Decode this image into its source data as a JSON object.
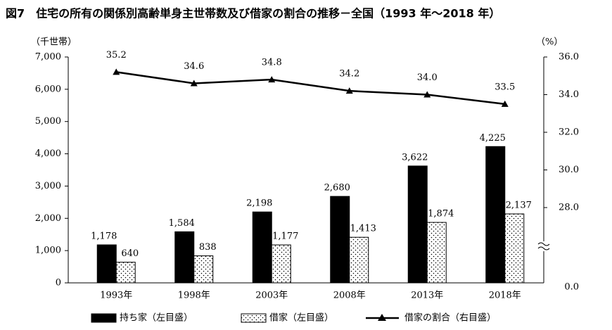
{
  "chart_data": {
    "type": "bar_line",
    "title": "図7　住宅の所有の関係別高齢単身主世帯数及び借家の割合の推移－全国（1993 年～2018 年）",
    "ylabel": "（千世帯）",
    "y2label": "（%）",
    "categories": [
      "1993年",
      "1998年",
      "2003年",
      "2008年",
      "2013年",
      "2018年"
    ],
    "series": [
      {
        "name": "持ち家（左目盛）",
        "color": "#000000",
        "type": "bar",
        "values": [
          1178,
          1584,
          2198,
          2680,
          3622,
          4225
        ],
        "value_labels": [
          "1,178",
          "1,584",
          "2,198",
          "2,680",
          "3,622",
          "4,225"
        ]
      },
      {
        "name": "借家（左目盛）",
        "color": "#ffffff",
        "pattern": "dots",
        "type": "bar",
        "values": [
          640,
          838,
          1177,
          1413,
          1874,
          2137
        ],
        "value_labels": [
          "640",
          "838",
          "1,177",
          "1,413",
          "1,874",
          "2,137"
        ]
      },
      {
        "name": "借家の割合（右目盛）",
        "color": "#000000",
        "type": "line",
        "marker": "triangle",
        "axis": "y2",
        "values": [
          35.2,
          34.6,
          34.8,
          34.2,
          34.0,
          33.5
        ],
        "value_labels": [
          "35.2",
          "34.6",
          "34.8",
          "34.2",
          "34.0",
          "33.5"
        ]
      }
    ],
    "ylim": [
      0,
      7000
    ],
    "yticks": [
      0,
      {
        "value": 1000,
        "label": "1,000"
      },
      {
        "value": 2000,
        "label": "2,000"
      },
      {
        "value": 3000,
        "label": "3,000"
      },
      {
        "value": 4000,
        "label": "4,000"
      },
      {
        "value": 5000,
        "label": "5,000"
      },
      {
        "value": 6000,
        "label": "6,000"
      },
      {
        "value": 7000,
        "label": "7,000"
      }
    ],
    "y2lim": [
      24,
      36
    ],
    "y2ticks": [
      {
        "value": 0,
        "label": "0.0"
      },
      {
        "value": 28,
        "label": "28.0"
      },
      {
        "value": 30,
        "label": "30.0"
      },
      {
        "value": 32,
        "label": "32.0"
      },
      {
        "value": 34,
        "label": "34.0"
      },
      {
        "value": 36,
        "label": "36.0"
      }
    ],
    "y2_axis_break": true,
    "legend": "bottom"
  }
}
